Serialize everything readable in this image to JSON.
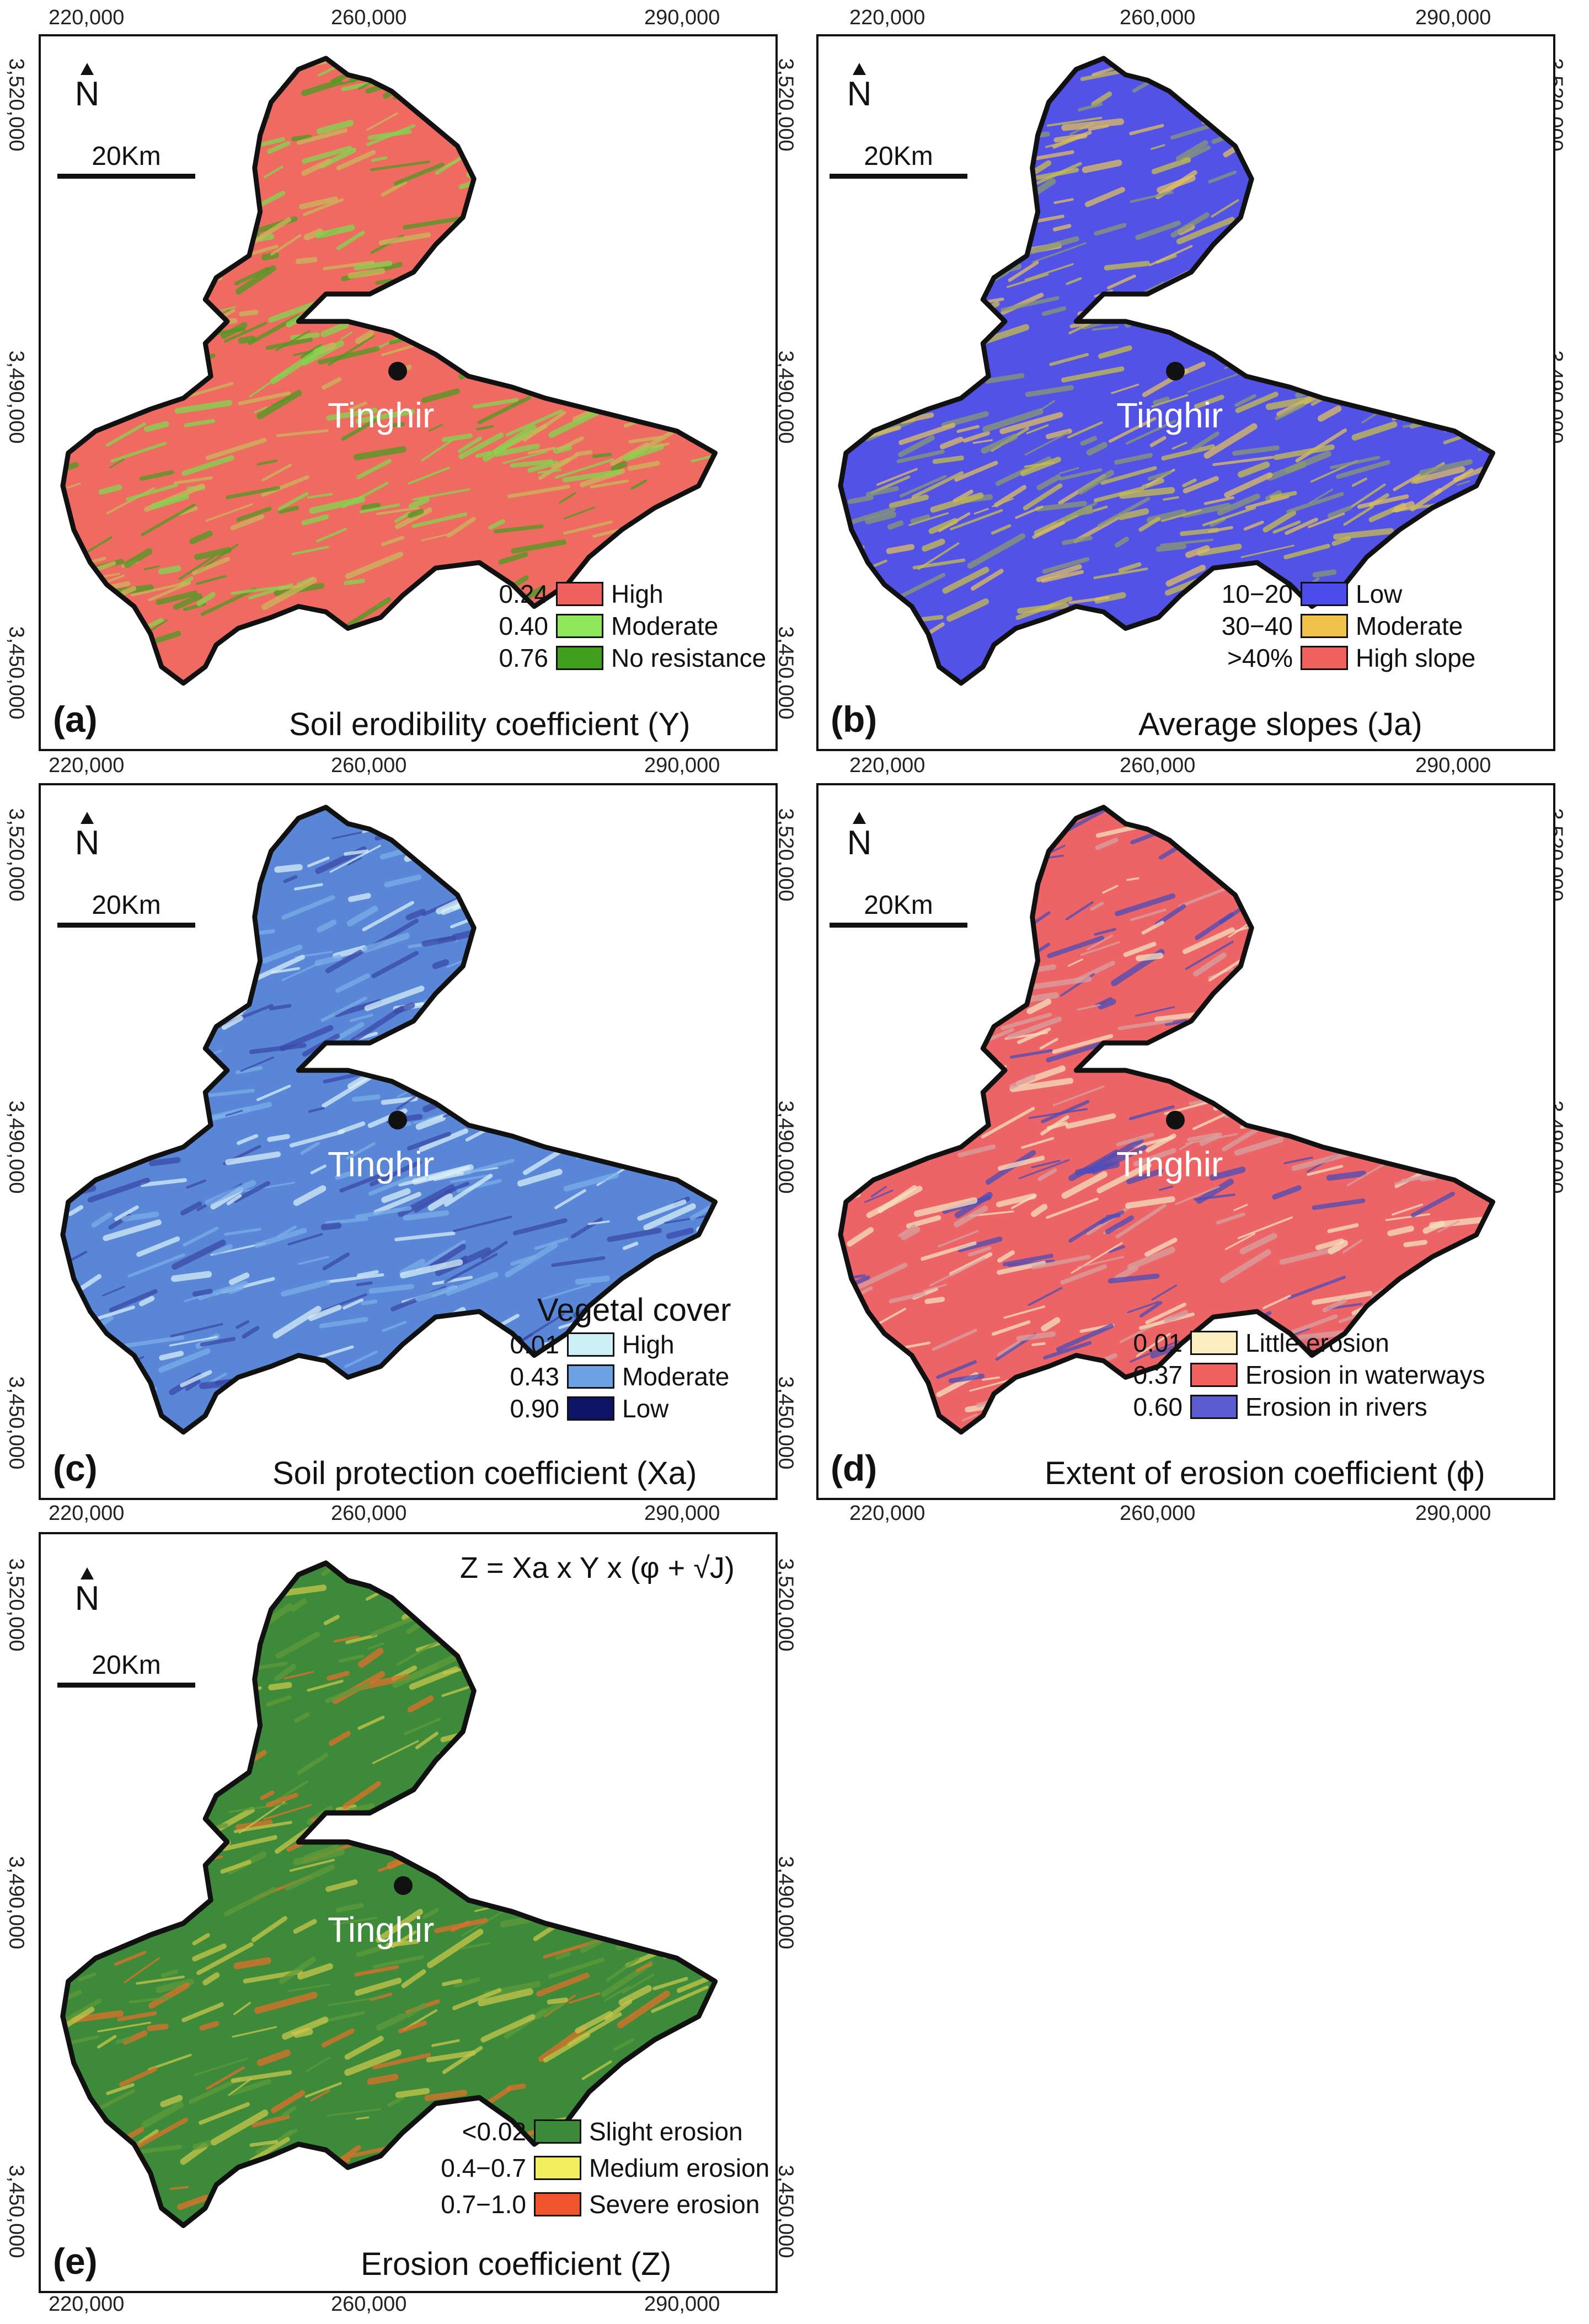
{
  "coords": {
    "x_ticks": [
      "220,000",
      "260,000",
      "290,000"
    ],
    "y_ticks": [
      "3,520,000",
      "3,490,000",
      "3,450,000"
    ]
  },
  "north_label": "N",
  "scale_label": "20Km",
  "city": "Tinghir",
  "formula": "Z = Xa x Y x (φ + √J)",
  "panels": [
    {
      "letter": "(a)",
      "caption": "Soil erodibility coefficient (Y)",
      "legend_title": "",
      "legend": [
        {
          "value": "0.24",
          "label": "High",
          "color": "#f0605c"
        },
        {
          "value": "0.40",
          "label": "Moderate",
          "color": "#8ee85a"
        },
        {
          "value": "0.76",
          "label": "No resistance",
          "color": "#3f9e1c"
        }
      ],
      "colors": {
        "base": "#ef6b62",
        "alt1": "#7fd94f",
        "alt2": "#4a9c20",
        "alt3": "#c9b85a"
      }
    },
    {
      "letter": "(b)",
      "caption": "Average slopes (Ja)",
      "legend_title": "",
      "legend": [
        {
          "value": "10−20",
          "label": "Low",
          "color": "#4b4bec"
        },
        {
          "value": "30−40",
          "label": "Moderate",
          "color": "#f0c24a"
        },
        {
          "value": ">40%",
          "label": "High slope",
          "color": "#f0605c"
        }
      ],
      "colors": {
        "base": "#5252e6",
        "alt1": "#c8be4c",
        "alt2": "#8a9a70",
        "alt3": "#e0c060"
      }
    },
    {
      "letter": "(c)",
      "caption": "Soil protection coefficient (Xa)",
      "legend_title": "Vegetal cover",
      "legend": [
        {
          "value": "0.01",
          "label": "High",
          "color": "#cdf0f7"
        },
        {
          "value": "0.43",
          "label": "Moderate",
          "color": "#6aa2e4"
        },
        {
          "value": "0.90",
          "label": "Low",
          "color": "#0d1466"
        }
      ],
      "colors": {
        "base": "#5a86d8",
        "alt1": "#3a4aa8",
        "alt2": "#7aaee8",
        "alt3": "#d8f0f8"
      }
    },
    {
      "letter": "(d)",
      "caption": "Extent of erosion coefficient (ϕ)",
      "legend_title": "",
      "legend": [
        {
          "value": "0.01",
          "label": "Little erosion",
          "color": "#fbeec0"
        },
        {
          "value": "0.37",
          "label": "Erosion in waterways",
          "color": "#f0605c"
        },
        {
          "value": "0.60",
          "label": "Erosion in rivers",
          "color": "#5a5ccf"
        }
      ],
      "colors": {
        "base": "#ec6466",
        "alt1": "#4c4cb8",
        "alt2": "#d8a0a0",
        "alt3": "#f6e2c0"
      }
    },
    {
      "letter": "(e)",
      "caption": "Erosion coefficient (Z)",
      "legend_title": "",
      "legend": [
        {
          "value": "<0.02",
          "label": "Slight erosion",
          "color": "#3a8a3a"
        },
        {
          "value": "0.4−0.7",
          "label": "Medium erosion",
          "color": "#f2ee60"
        },
        {
          "value": "0.7−1.0",
          "label": "Severe erosion",
          "color": "#f0542a"
        }
      ],
      "colors": {
        "base": "#3c8a3a",
        "alt1": "#c9c64a",
        "alt2": "#e0702a",
        "alt3": "#5f9a3a"
      }
    }
  ]
}
